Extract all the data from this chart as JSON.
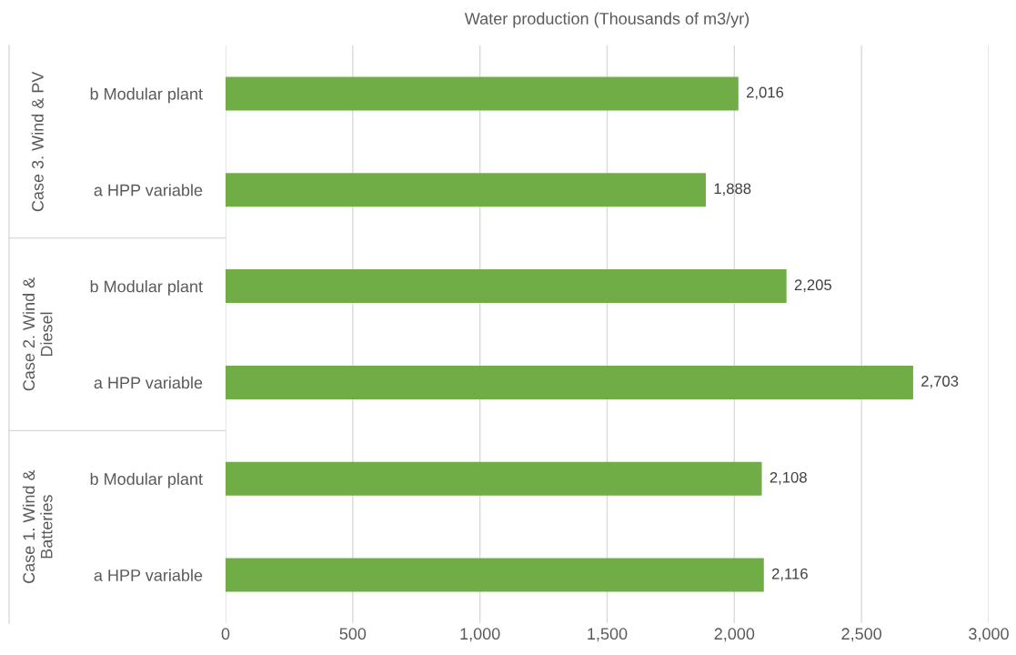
{
  "chart_data": {
    "type": "bar",
    "orientation": "horizontal",
    "title": "Water production (Thousands of m3/yr)",
    "categories": [
      "b Modular plant",
      "a HPP variable",
      "b Modular plant",
      "a HPP variable",
      "b Modular plant",
      "a HPP variable"
    ],
    "values": [
      2016,
      1888,
      2205,
      2703,
      2108,
      2116
    ],
    "value_labels": [
      "2,016",
      "1,888",
      "2,205",
      "2,703",
      "2,108",
      "2,116"
    ],
    "color": "#70ad47",
    "annotations": [
      "Case 3. Wind & PV",
      "Case 2. Wind &\nDiesel",
      "Case 1. Wind &\nBatteries"
    ],
    "xlim": [
      0,
      3000
    ],
    "xticks": [
      0,
      500,
      {
        "value": 1000,
        "label": "1,000"
      },
      {
        "value": 1500,
        "label": "1,500"
      },
      {
        "value": 2000,
        "label": "2,000"
      },
      {
        "value": 2500,
        "label": "2,500"
      },
      {
        "value": 3000,
        "label": "3,000"
      }
    ],
    "grid": "x"
  }
}
